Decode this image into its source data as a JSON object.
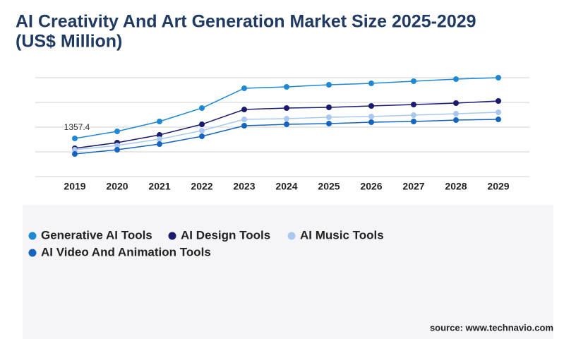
{
  "title": "AI Creativity And Art Generation Market Size 2025-2029",
  "subtitle": "(US$ Million)",
  "source": "source: www.technavio.com",
  "chart_data": {
    "type": "line",
    "categories": [
      "2019",
      "2020",
      "2021",
      "2022",
      "2023",
      "2024",
      "2025",
      "2026",
      "2027",
      "2028",
      "2029"
    ],
    "ylim": [
      0,
      3520
    ],
    "yticks": [
      0,
      880,
      1760,
      2640,
      3520
    ],
    "grid": true,
    "ytick_labels": false,
    "series": [
      {
        "name": "Generative AI Tools",
        "color": "#1e88d4",
        "values": [
          1357.4,
          1609,
          1961,
          2439,
          3143,
          3193,
          3268,
          3318,
          3394,
          3469,
          3520
        ],
        "value_labels": [
          "1357.4",
          null,
          null,
          null,
          null,
          null,
          null,
          null,
          null,
          null,
          null
        ]
      },
      {
        "name": "AI Design Tools",
        "color": "#1a1a6e",
        "values": [
          1006,
          1207,
          1483,
          1860,
          2388,
          2439,
          2464,
          2514,
          2564,
          2615,
          2690
        ]
      },
      {
        "name": "AI Music Tools",
        "color": "#a8c8f0",
        "values": [
          955,
          1106,
          1332,
          1634,
          2036,
          2061,
          2112,
          2137,
          2187,
          2237,
          2288
        ]
      },
      {
        "name": "AI Video And Animation Tools",
        "color": "#1565c0",
        "values": [
          804,
          955,
          1156,
          1433,
          1810,
          1860,
          1886,
          1936,
          1961,
          2011,
          2036
        ]
      }
    ]
  }
}
